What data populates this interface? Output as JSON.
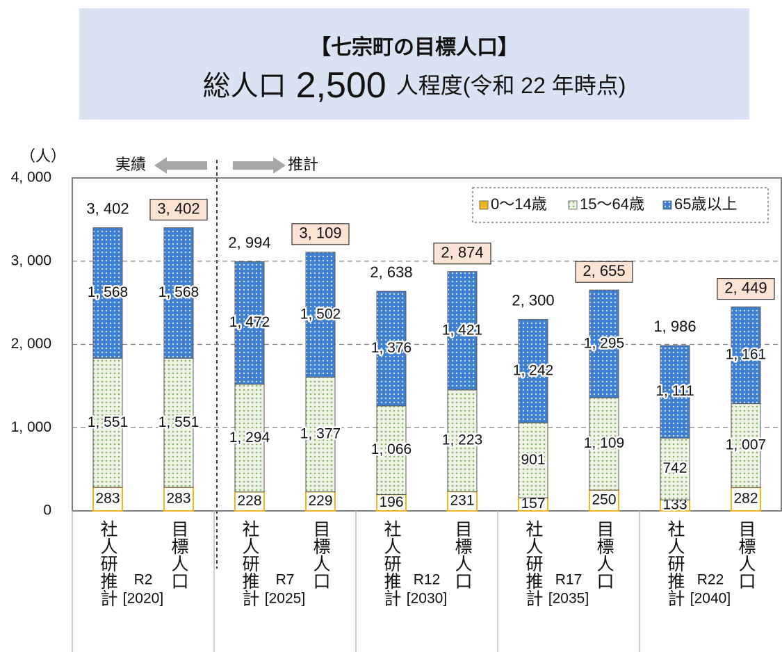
{
  "chart_data": {
    "type": "stacked_bar",
    "title": "【七宗町の目標人口】",
    "subtitle_parts": [
      "総人口",
      "2,500",
      "人程度(令和 22 年時点)"
    ],
    "y_label": "（人）",
    "annotations": [
      "実績",
      "推計"
    ],
    "categories": [
      "社人研推計",
      "目標人口",
      "社人研推計",
      "目標人口",
      "社人研推計",
      "目標人口",
      "社人研推計",
      "目標人口",
      "社人研推計",
      "目標人口"
    ],
    "groups": [
      {
        "label": "R2",
        "sub": "[2020]"
      },
      {
        "label": "R7",
        "sub": "[2025]"
      },
      {
        "label": "R12",
        "sub": "[2030]"
      },
      {
        "label": "R17",
        "sub": "[2035]"
      },
      {
        "label": "R22",
        "sub": "[2040]"
      }
    ],
    "series": [
      {
        "name": "0～14歳",
        "color": "#f2b51f",
        "values": [
          283,
          283,
          228,
          229,
          196,
          231,
          157,
          250,
          133,
          282
        ]
      },
      {
        "name": "15～64歳",
        "color": "#a9c48a",
        "values": [
          1551,
          1551,
          1294,
          1377,
          1066,
          1223,
          901,
          1109,
          742,
          1007
        ],
        "value_labels": [
          "1, 551",
          "1, 551",
          "1, 294",
          "1, 377",
          "1, 066",
          "1, 223",
          "901",
          "1, 109",
          "742",
          "1, 007"
        ]
      },
      {
        "name": "65歳以上",
        "color": "#3f7fd0",
        "values": [
          1568,
          1568,
          1472,
          1502,
          1376,
          1421,
          1242,
          1295,
          1111,
          1161
        ],
        "value_labels": [
          "1, 568",
          "1, 568",
          "1, 472",
          "1, 502",
          "1, 376",
          "1, 421",
          "1, 242",
          "1, 295",
          "1, 111",
          "1, 161"
        ]
      }
    ],
    "totals": [
      3402,
      3402,
      2994,
      3109,
      2638,
      2874,
      2300,
      2655,
      1986,
      2449
    ],
    "total_labels": [
      "3, 402",
      "3, 402",
      "2, 994",
      "3, 109",
      "2, 638",
      "2, 874",
      "2, 300",
      "2, 655",
      "1, 986",
      "2, 449"
    ],
    "total_highlight": [
      false,
      true,
      false,
      true,
      false,
      true,
      false,
      true,
      false,
      true
    ],
    "highlight_color": "#fde3d4",
    "ylim": [
      0,
      4000
    ],
    "yticks": [
      0,
      {
        "value": 1000,
        "label": "1, 000"
      },
      {
        "value": 2000,
        "label": "2, 000"
      },
      {
        "value": 3000,
        "label": "3, 000"
      },
      {
        "value": 4000,
        "label": "4, 000"
      }
    ],
    "grid": true,
    "legend": "top-right"
  }
}
